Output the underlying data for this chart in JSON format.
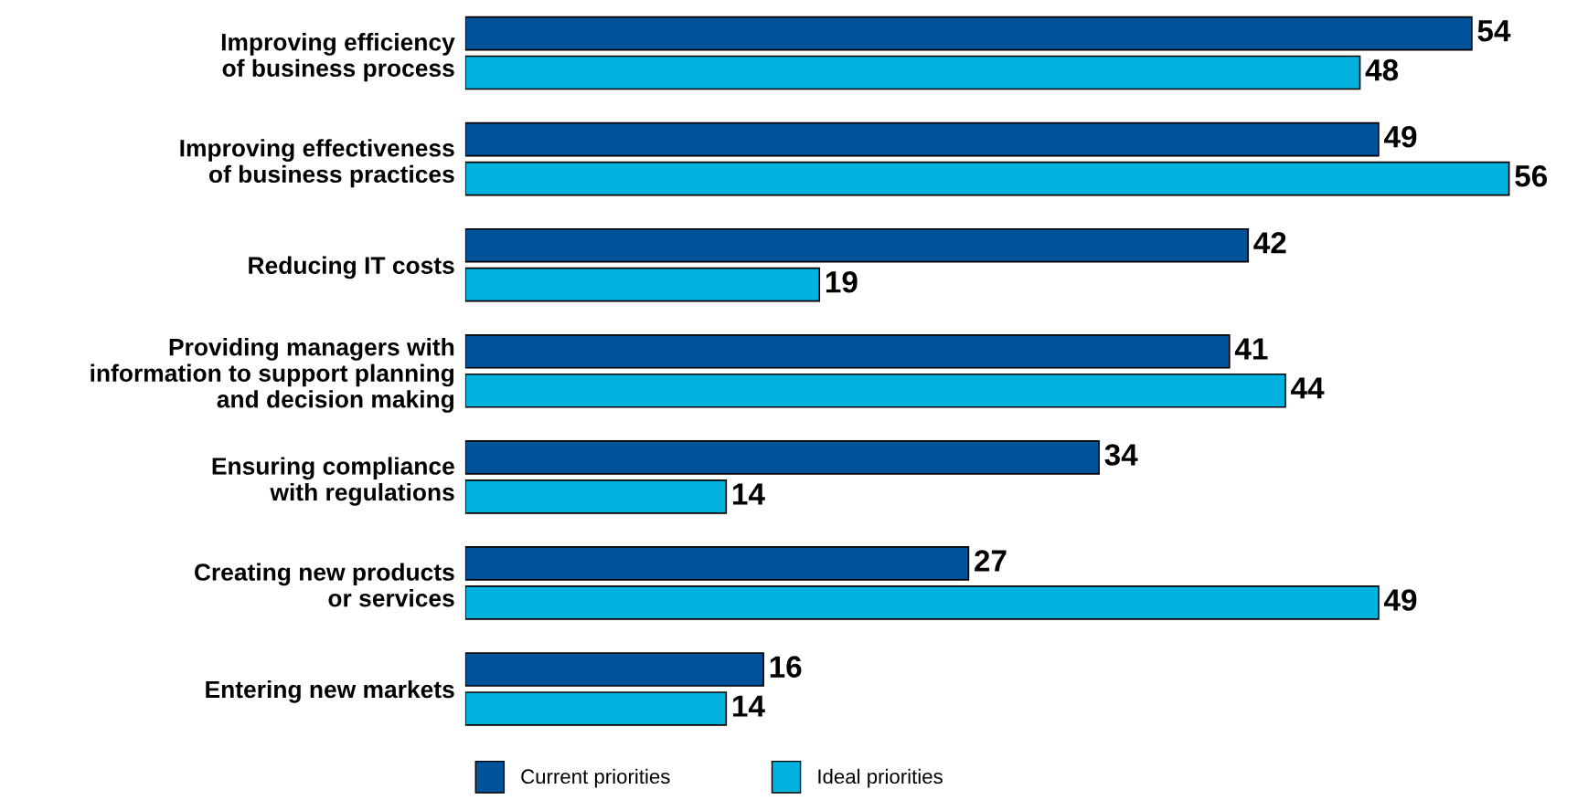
{
  "chart_data": {
    "type": "bar",
    "orientation": "horizontal",
    "categories": [
      "Improving efficiency\nof business process",
      "Improving effectiveness\nof business practices",
      "Reducing IT costs",
      "Providing managers with\ninformation to support planning\nand decision making",
      "Ensuring compliance\nwith regulations",
      "Creating new products\nor services",
      "Entering new markets"
    ],
    "series": [
      {
        "name": "Current priorities",
        "color": "#00529b",
        "values": [
          54,
          49,
          42,
          41,
          34,
          27,
          16
        ]
      },
      {
        "name": "Ideal priorities",
        "color": "#00b2de",
        "values": [
          48,
          56,
          19,
          44,
          14,
          49,
          14
        ]
      }
    ],
    "data_labels": true,
    "legend": "bottom",
    "grid": false
  }
}
